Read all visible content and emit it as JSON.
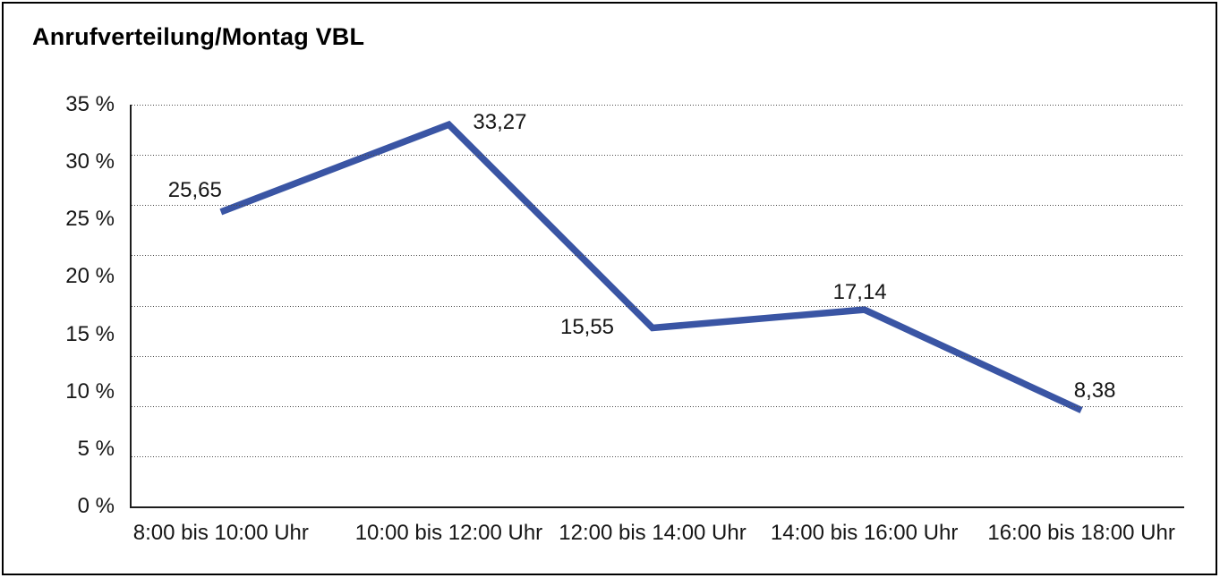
{
  "window": {
    "background": "#ffffff",
    "frame_border_color": "#000000"
  },
  "chart_data": {
    "type": "line",
    "title": "Anrufverteilung/Montag VBL",
    "categories": [
      "8:00 bis 10:00 Uhr",
      "10:00 bis 12:00 Uhr",
      "12:00 bis 14:00 Uhr",
      "14:00 bis 16:00 Uhr",
      "16:00 bis 18:00 Uhr"
    ],
    "values": [
      25.65,
      33.27,
      15.55,
      17.14,
      8.38
    ],
    "value_labels": [
      "25,65",
      "33,27",
      "15,55",
      "17,14",
      "8,38"
    ],
    "xlabel": "",
    "ylabel": "",
    "y_axis": {
      "min": 0,
      "max": 35,
      "tick_step": 5,
      "unit": "%",
      "tick_labels_top_to_bottom": [
        "35 %",
        "30 %",
        "25 %",
        "20 %",
        "15 %",
        "10 %",
        "5 %",
        "0 %"
      ]
    },
    "grid": {
      "horizontal_lines": 9,
      "style": "dotted",
      "color": "#4a4a4a"
    },
    "legend": "none",
    "line_color": "#3A55A4",
    "axis_color": "#1d1d1d",
    "text_color": "#161616"
  }
}
